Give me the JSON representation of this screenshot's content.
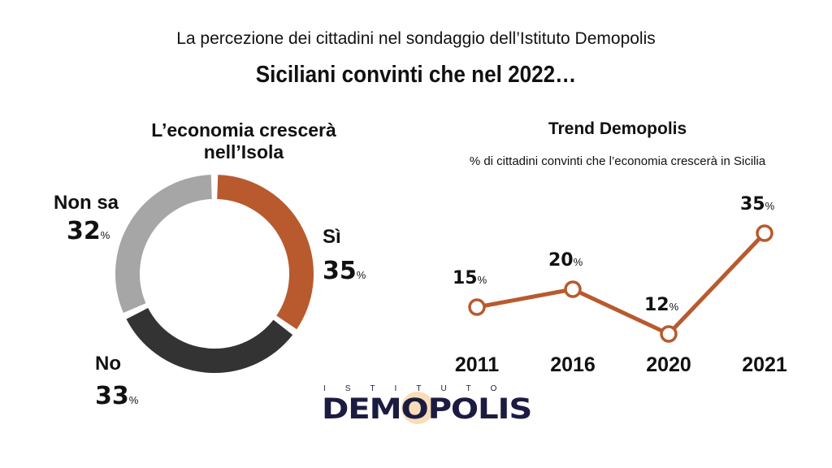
{
  "header": {
    "suptitle": "La percezione dei cittadini nel sondaggio dell’Istituto Demopolis",
    "title": "Siciliani convinti che nel 2022…"
  },
  "logo": {
    "top": "ISTITUTO",
    "main": "DEMOPOLIS"
  },
  "chart_data": [
    {
      "type": "pie",
      "style": "donut",
      "title": "L’economia crescerà nell’Isola",
      "slices": [
        {
          "label": "Sì",
          "value": 35,
          "color": "#b85a2e"
        },
        {
          "label": "No",
          "value": 33,
          "color": "#333333"
        },
        {
          "label": "Non sa",
          "value": 32,
          "color": "#a6a6a6"
        }
      ],
      "unit": "%"
    },
    {
      "type": "line",
      "title": "Trend Demopolis",
      "subtitle": "% di cittadini convinti che l’economia crescerà in Sicilia",
      "categories": [
        "2011",
        "2016",
        "2020",
        "2021"
      ],
      "values": [
        15,
        20,
        12,
        35
      ],
      "unit": "%",
      "color": "#b85a2e",
      "grid": false
    }
  ]
}
